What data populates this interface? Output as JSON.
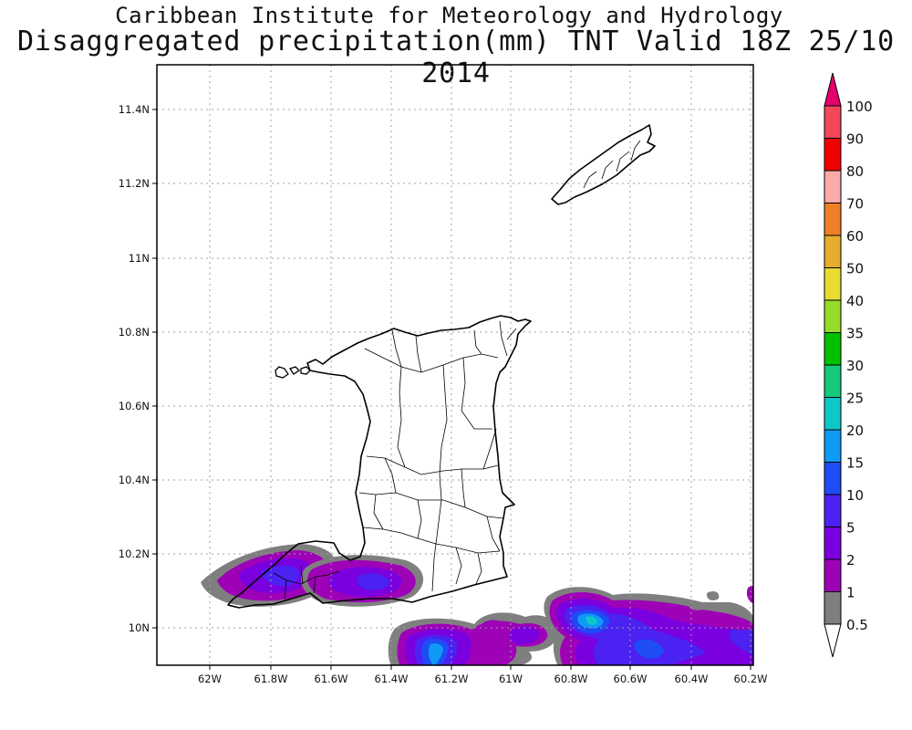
{
  "titles": {
    "line1": "Caribbean Institute for Meteorology and Hydrology",
    "line2": "Disaggregated precipitation(mm) TNT Valid 18Z 25/10 2014"
  },
  "map": {
    "region": "Trinidad and Tobago",
    "lon_range": [
      -62.18,
      -60.18
    ],
    "lat_range": [
      9.91,
      11.52
    ],
    "grid": true,
    "grid_style": "dotted",
    "x_ticks": [
      "62W",
      "61.8W",
      "61.6W",
      "61.4W",
      "61.2W",
      "61W",
      "60.8W",
      "60.6W",
      "60.4W",
      "60.2W"
    ],
    "y_ticks": [
      "10N",
      "10.2N",
      "10.4N",
      "10.6N",
      "10.8N",
      "11N",
      "11.2N",
      "11.4N"
    ]
  },
  "colorbar": {
    "labels": [
      "0.5",
      "1",
      "2",
      "5",
      "10",
      "15",
      "20",
      "25",
      "30",
      "35",
      "40",
      "50",
      "60",
      "70",
      "80",
      "90",
      "100"
    ],
    "colors": [
      "#ffffff",
      "#7f7f7f",
      "#9d02b7",
      "#7a00e0",
      "#4b22f2",
      "#1e4cf5",
      "#0f9af5",
      "#0ec8c8",
      "#16c97a",
      "#00c000",
      "#96dc28",
      "#e6dc32",
      "#e6ad2d",
      "#f07f28",
      "#faaaaa",
      "#f00000",
      "#f5475a",
      "#e6006e"
    ]
  },
  "precip_areas": [
    {
      "name": "southwest-trinidad-cell",
      "max_class": "5"
    },
    {
      "name": "south-coast-cell",
      "max_class": "5"
    },
    {
      "name": "gulf-of-paria-south-cell",
      "max_class": "15"
    },
    {
      "name": "southeast-offshore-cell",
      "max_class": "20"
    }
  ]
}
